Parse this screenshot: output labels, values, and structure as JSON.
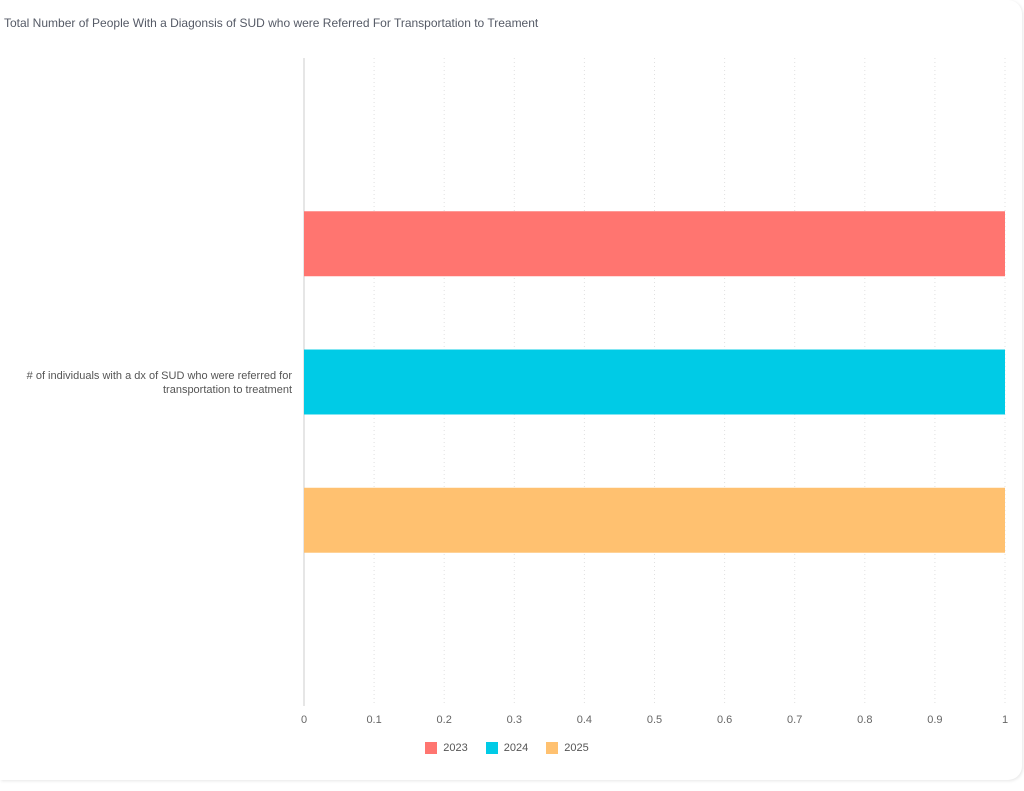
{
  "chart_data": {
    "type": "bar",
    "orientation": "horizontal",
    "title": "Total Number of People With a Diagonsis of SUD who were Referred For Transportation to Treament",
    "categories": [
      "# of individuals with a dx of SUD who were referred for transportation to treatment"
    ],
    "category_label_lines": [
      "# of individuals with a dx of SUD who were referred for",
      "transportation to treatment"
    ],
    "series": [
      {
        "name": "2023",
        "color": "#ff7570",
        "values": [
          1
        ]
      },
      {
        "name": "2024",
        "color": "#00cbe6",
        "values": [
          1
        ]
      },
      {
        "name": "2025",
        "color": "#ffc170",
        "values": [
          1
        ]
      }
    ],
    "xlim": [
      0,
      1
    ],
    "xticks": [
      0,
      0.1,
      0.2,
      0.3,
      0.4,
      0.5,
      0.6,
      0.7,
      0.8,
      0.9,
      1
    ],
    "xtick_labels": [
      "0",
      "0.1",
      "0.2",
      "0.3",
      "0.4",
      "0.5",
      "0.6",
      "0.7",
      "0.8",
      "0.9",
      "1"
    ],
    "grid": true,
    "legend": "bottom-center",
    "axis_color": "#cccccc",
    "grid_color": "#e0e0e0"
  }
}
